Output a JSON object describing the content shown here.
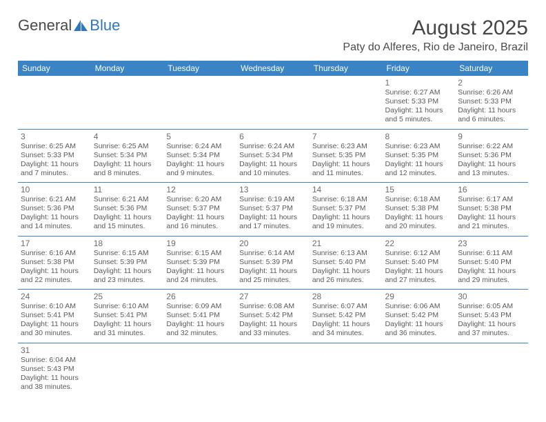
{
  "logo": {
    "text1": "General",
    "text2": "Blue",
    "color_general": "#4a4a4a",
    "color_blue": "#2f78bf",
    "sail_color": "#2f78bf"
  },
  "header": {
    "month_title": "August 2025",
    "location": "Paty do Alferes, Rio de Janeiro, Brazil"
  },
  "columns": [
    "Sunday",
    "Monday",
    "Tuesday",
    "Wednesday",
    "Thursday",
    "Friday",
    "Saturday"
  ],
  "colors": {
    "header_bg": "#3a84c6",
    "header_fg": "#ffffff",
    "rule": "#3a84c6",
    "text": "#5a5a5a",
    "bg": "#ffffff"
  },
  "weeks": [
    [
      null,
      null,
      null,
      null,
      null,
      {
        "d": "1",
        "sr": "Sunrise: 6:27 AM",
        "ss": "Sunset: 5:33 PM",
        "dl": "Daylight: 11 hours and 5 minutes."
      },
      {
        "d": "2",
        "sr": "Sunrise: 6:26 AM",
        "ss": "Sunset: 5:33 PM",
        "dl": "Daylight: 11 hours and 6 minutes."
      }
    ],
    [
      {
        "d": "3",
        "sr": "Sunrise: 6:25 AM",
        "ss": "Sunset: 5:33 PM",
        "dl": "Daylight: 11 hours and 7 minutes."
      },
      {
        "d": "4",
        "sr": "Sunrise: 6:25 AM",
        "ss": "Sunset: 5:34 PM",
        "dl": "Daylight: 11 hours and 8 minutes."
      },
      {
        "d": "5",
        "sr": "Sunrise: 6:24 AM",
        "ss": "Sunset: 5:34 PM",
        "dl": "Daylight: 11 hours and 9 minutes."
      },
      {
        "d": "6",
        "sr": "Sunrise: 6:24 AM",
        "ss": "Sunset: 5:34 PM",
        "dl": "Daylight: 11 hours and 10 minutes."
      },
      {
        "d": "7",
        "sr": "Sunrise: 6:23 AM",
        "ss": "Sunset: 5:35 PM",
        "dl": "Daylight: 11 hours and 11 minutes."
      },
      {
        "d": "8",
        "sr": "Sunrise: 6:23 AM",
        "ss": "Sunset: 5:35 PM",
        "dl": "Daylight: 11 hours and 12 minutes."
      },
      {
        "d": "9",
        "sr": "Sunrise: 6:22 AM",
        "ss": "Sunset: 5:36 PM",
        "dl": "Daylight: 11 hours and 13 minutes."
      }
    ],
    [
      {
        "d": "10",
        "sr": "Sunrise: 6:21 AM",
        "ss": "Sunset: 5:36 PM",
        "dl": "Daylight: 11 hours and 14 minutes."
      },
      {
        "d": "11",
        "sr": "Sunrise: 6:21 AM",
        "ss": "Sunset: 5:36 PM",
        "dl": "Daylight: 11 hours and 15 minutes."
      },
      {
        "d": "12",
        "sr": "Sunrise: 6:20 AM",
        "ss": "Sunset: 5:37 PM",
        "dl": "Daylight: 11 hours and 16 minutes."
      },
      {
        "d": "13",
        "sr": "Sunrise: 6:19 AM",
        "ss": "Sunset: 5:37 PM",
        "dl": "Daylight: 11 hours and 17 minutes."
      },
      {
        "d": "14",
        "sr": "Sunrise: 6:18 AM",
        "ss": "Sunset: 5:37 PM",
        "dl": "Daylight: 11 hours and 19 minutes."
      },
      {
        "d": "15",
        "sr": "Sunrise: 6:18 AM",
        "ss": "Sunset: 5:38 PM",
        "dl": "Daylight: 11 hours and 20 minutes."
      },
      {
        "d": "16",
        "sr": "Sunrise: 6:17 AM",
        "ss": "Sunset: 5:38 PM",
        "dl": "Daylight: 11 hours and 21 minutes."
      }
    ],
    [
      {
        "d": "17",
        "sr": "Sunrise: 6:16 AM",
        "ss": "Sunset: 5:38 PM",
        "dl": "Daylight: 11 hours and 22 minutes."
      },
      {
        "d": "18",
        "sr": "Sunrise: 6:15 AM",
        "ss": "Sunset: 5:39 PM",
        "dl": "Daylight: 11 hours and 23 minutes."
      },
      {
        "d": "19",
        "sr": "Sunrise: 6:15 AM",
        "ss": "Sunset: 5:39 PM",
        "dl": "Daylight: 11 hours and 24 minutes."
      },
      {
        "d": "20",
        "sr": "Sunrise: 6:14 AM",
        "ss": "Sunset: 5:39 PM",
        "dl": "Daylight: 11 hours and 25 minutes."
      },
      {
        "d": "21",
        "sr": "Sunrise: 6:13 AM",
        "ss": "Sunset: 5:40 PM",
        "dl": "Daylight: 11 hours and 26 minutes."
      },
      {
        "d": "22",
        "sr": "Sunrise: 6:12 AM",
        "ss": "Sunset: 5:40 PM",
        "dl": "Daylight: 11 hours and 27 minutes."
      },
      {
        "d": "23",
        "sr": "Sunrise: 6:11 AM",
        "ss": "Sunset: 5:40 PM",
        "dl": "Daylight: 11 hours and 29 minutes."
      }
    ],
    [
      {
        "d": "24",
        "sr": "Sunrise: 6:10 AM",
        "ss": "Sunset: 5:41 PM",
        "dl": "Daylight: 11 hours and 30 minutes."
      },
      {
        "d": "25",
        "sr": "Sunrise: 6:10 AM",
        "ss": "Sunset: 5:41 PM",
        "dl": "Daylight: 11 hours and 31 minutes."
      },
      {
        "d": "26",
        "sr": "Sunrise: 6:09 AM",
        "ss": "Sunset: 5:41 PM",
        "dl": "Daylight: 11 hours and 32 minutes."
      },
      {
        "d": "27",
        "sr": "Sunrise: 6:08 AM",
        "ss": "Sunset: 5:42 PM",
        "dl": "Daylight: 11 hours and 33 minutes."
      },
      {
        "d": "28",
        "sr": "Sunrise: 6:07 AM",
        "ss": "Sunset: 5:42 PM",
        "dl": "Daylight: 11 hours and 34 minutes."
      },
      {
        "d": "29",
        "sr": "Sunrise: 6:06 AM",
        "ss": "Sunset: 5:42 PM",
        "dl": "Daylight: 11 hours and 36 minutes."
      },
      {
        "d": "30",
        "sr": "Sunrise: 6:05 AM",
        "ss": "Sunset: 5:43 PM",
        "dl": "Daylight: 11 hours and 37 minutes."
      }
    ],
    [
      {
        "d": "31",
        "sr": "Sunrise: 6:04 AM",
        "ss": "Sunset: 5:43 PM",
        "dl": "Daylight: 11 hours and 38 minutes."
      },
      null,
      null,
      null,
      null,
      null,
      null
    ]
  ]
}
